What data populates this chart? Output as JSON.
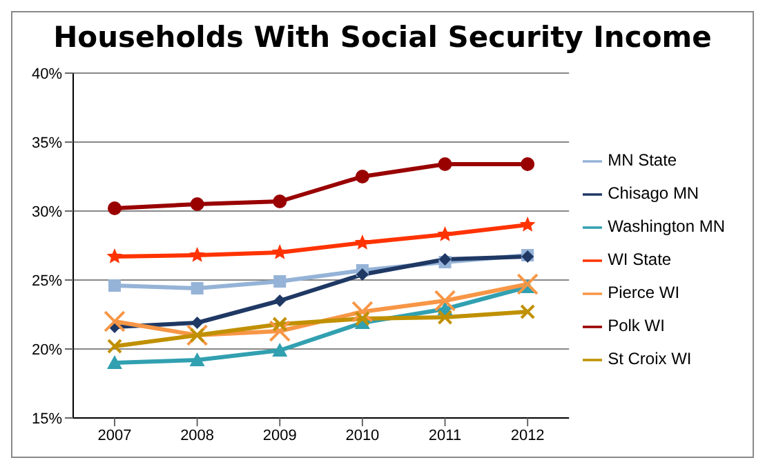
{
  "chart_data": {
    "type": "line",
    "title": "Households With Social Security Income",
    "categories": [
      "2007",
      "2008",
      "2009",
      "2010",
      "2011",
      "2012"
    ],
    "series": [
      {
        "name": "MN State",
        "color": "#95b3d7",
        "marker": "square",
        "values": [
          24.6,
          24.4,
          24.9,
          25.7,
          26.3,
          26.8
        ]
      },
      {
        "name": "Chisago MN",
        "color": "#1f3864",
        "marker": "diamond",
        "values": [
          21.6,
          21.9,
          23.5,
          25.4,
          26.5,
          26.7
        ]
      },
      {
        "name": "Washington MN",
        "color": "#31a0b0",
        "marker": "triangle",
        "values": [
          19.0,
          19.2,
          19.9,
          21.9,
          22.9,
          24.5
        ]
      },
      {
        "name": "WI State",
        "color": "#ff3300",
        "marker": "star",
        "values": [
          26.7,
          26.8,
          27.0,
          27.7,
          28.3,
          29.0
        ]
      },
      {
        "name": "Pierce WI",
        "color": "#f79646",
        "marker": "cross",
        "values": [
          22.0,
          21.0,
          21.3,
          22.7,
          23.5,
          24.7
        ]
      },
      {
        "name": "Polk WI",
        "color": "#990000",
        "marker": "circle",
        "values": [
          30.2,
          30.5,
          30.7,
          32.5,
          33.4,
          33.4
        ]
      },
      {
        "name": "St Croix WI",
        "color": "#c09000",
        "marker": "cross",
        "values": [
          20.2,
          21.0,
          21.8,
          22.2,
          22.3,
          22.7
        ]
      }
    ],
    "ylim": [
      15,
      40
    ],
    "yticks": [
      {
        "value": 15,
        "label": "15%"
      },
      {
        "value": 20,
        "label": "20%"
      },
      {
        "value": 25,
        "label": "25%"
      },
      {
        "value": 30,
        "label": "30%"
      },
      {
        "value": 35,
        "label": "35%"
      },
      {
        "value": 40,
        "label": "40%"
      }
    ],
    "grid": "y",
    "legend": "right"
  }
}
